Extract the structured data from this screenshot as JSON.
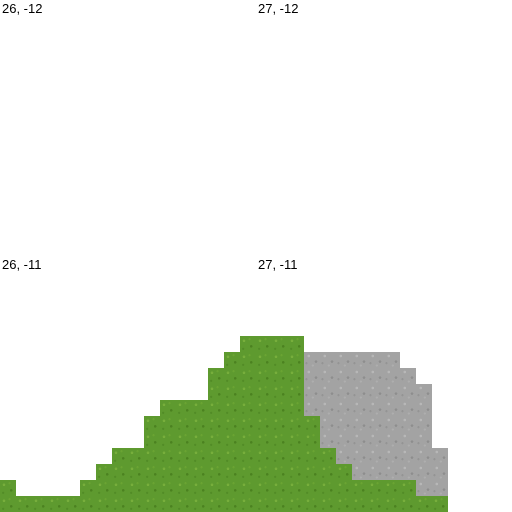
{
  "map": {
    "tile_types": {
      "grass": {
        "name": "grass-block",
        "color": "#5e9a2f"
      },
      "stone": {
        "name": "stone-block",
        "color": "#a3a3a3"
      }
    },
    "chunks": [
      {
        "id": "c-26-m12",
        "label": "26, -12"
      },
      {
        "id": "c-27-m12",
        "label": "27, -12"
      },
      {
        "id": "c-26-m11",
        "label": "26, -11"
      },
      {
        "id": "c-27-m11",
        "label": "27, -11"
      }
    ]
  }
}
